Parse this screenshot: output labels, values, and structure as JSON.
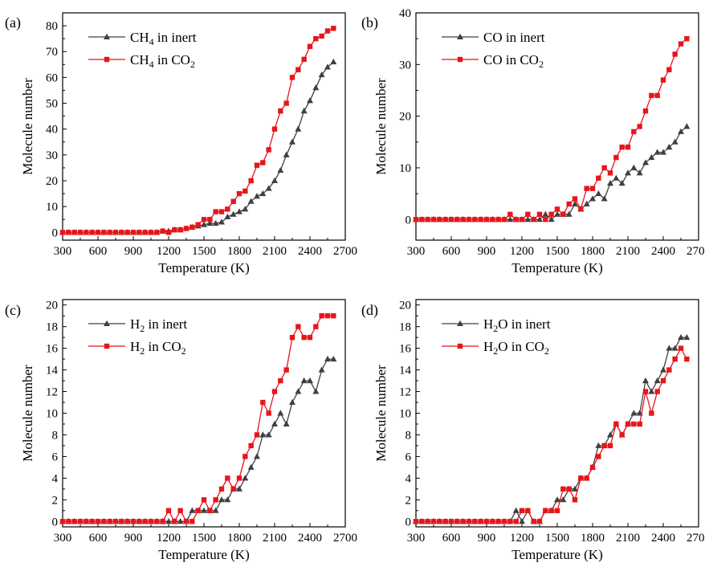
{
  "chart_data": [
    {
      "type": "line",
      "panel_label": "(a)",
      "xlabel": "Temperature (K)",
      "ylabel": "Molecule number",
      "xlim": [
        300,
        2700
      ],
      "ylim": [
        -3,
        85
      ],
      "xticks": [
        300,
        600,
        900,
        1200,
        1500,
        1800,
        2100,
        2400,
        2700
      ],
      "yticks": [
        0,
        10,
        20,
        30,
        40,
        50,
        60,
        70,
        80
      ],
      "legend_position": "top-left",
      "x": [
        300,
        350,
        400,
        450,
        500,
        550,
        600,
        650,
        700,
        750,
        800,
        850,
        900,
        950,
        1000,
        1050,
        1100,
        1150,
        1200,
        1250,
        1300,
        1350,
        1400,
        1450,
        1500,
        1550,
        1600,
        1650,
        1700,
        1750,
        1800,
        1850,
        1900,
        1950,
        2000,
        2050,
        2100,
        2150,
        2200,
        2250,
        2300,
        2350,
        2400,
        2450,
        2500,
        2550,
        2600
      ],
      "series": [
        {
          "name_parts": [
            "CH",
            "4",
            " in inert"
          ],
          "color": "#404040",
          "marker": "triangle",
          "values": [
            0,
            0,
            0,
            0,
            0,
            0,
            0,
            0,
            0,
            0,
            0,
            0,
            0,
            0,
            0,
            0,
            0,
            0.5,
            0.5,
            1,
            1,
            1.5,
            2,
            2.5,
            3,
            3.5,
            3.5,
            4,
            6,
            7,
            8,
            9,
            12,
            14,
            15,
            17,
            20,
            24,
            30,
            35,
            40,
            47,
            51,
            56,
            61,
            64,
            66
          ]
        },
        {
          "name_parts": [
            "CH",
            "4",
            " in CO",
            "2",
            ""
          ],
          "color": "#e8151b",
          "marker": "square",
          "values": [
            0,
            0,
            0,
            0,
            0,
            0,
            0,
            0,
            0,
            0,
            0,
            0,
            0,
            0,
            0,
            0,
            0,
            0.5,
            0,
            1,
            1,
            1.5,
            2,
            3,
            5,
            5,
            8,
            8,
            9,
            12,
            15,
            16,
            20,
            26,
            27,
            32,
            40,
            47,
            50,
            60,
            63,
            67,
            72,
            75,
            76,
            78,
            79
          ]
        }
      ]
    },
    {
      "type": "line",
      "panel_label": "(b)",
      "xlabel": "Temperature (K)",
      "ylabel": "Molecule number",
      "xlim": [
        300,
        2700
      ],
      "ylim": [
        -4,
        40
      ],
      "xticks": [
        300,
        600,
        900,
        1200,
        1500,
        1800,
        2100,
        2400,
        2700
      ],
      "yticks": [
        0,
        10,
        20,
        30,
        40
      ],
      "legend_position": "top-left",
      "x": [
        300,
        350,
        400,
        450,
        500,
        550,
        600,
        650,
        700,
        750,
        800,
        850,
        900,
        950,
        1000,
        1050,
        1100,
        1150,
        1200,
        1250,
        1300,
        1350,
        1400,
        1450,
        1500,
        1550,
        1600,
        1650,
        1700,
        1750,
        1800,
        1850,
        1900,
        1950,
        2000,
        2050,
        2100,
        2150,
        2200,
        2250,
        2300,
        2350,
        2400,
        2450,
        2500,
        2550,
        2600
      ],
      "series": [
        {
          "name_parts": [
            "CO in inert"
          ],
          "color": "#404040",
          "marker": "triangle",
          "values": [
            0,
            0,
            0,
            0,
            0,
            0,
            0,
            0,
            0,
            0,
            0,
            0,
            0,
            0,
            0,
            0,
            0,
            0,
            0,
            0,
            0,
            0,
            1,
            0,
            1,
            1,
            1,
            3,
            2,
            3,
            4,
            5,
            4,
            7,
            8,
            7,
            9,
            10,
            9,
            11,
            12,
            13,
            13,
            14,
            15,
            17,
            18
          ]
        },
        {
          "name_parts": [
            "CO in CO",
            "2",
            ""
          ],
          "color": "#e8151b",
          "marker": "square",
          "values": [
            0,
            0,
            0,
            0,
            0,
            0,
            0,
            0,
            0,
            0,
            0,
            0,
            0,
            0,
            0,
            0,
            1,
            0,
            0,
            1,
            0,
            1,
            0,
            1,
            2,
            1,
            3,
            4,
            2,
            6,
            6,
            8,
            10,
            9,
            12,
            14,
            14,
            17,
            18,
            21,
            24,
            24,
            27,
            29,
            32,
            34,
            35
          ]
        }
      ]
    },
    {
      "type": "line",
      "panel_label": "(c)",
      "xlabel": "Temperature (K)",
      "ylabel": "Molecule number",
      "xlim": [
        300,
        2700
      ],
      "ylim": [
        -0.5,
        20.5
      ],
      "xticks": [
        300,
        600,
        900,
        1200,
        1500,
        1800,
        2100,
        2400,
        2700
      ],
      "yticks": [
        0,
        2,
        4,
        6,
        8,
        10,
        12,
        14,
        16,
        18,
        20
      ],
      "legend_position": "top-left",
      "x": [
        300,
        350,
        400,
        450,
        500,
        550,
        600,
        650,
        700,
        750,
        800,
        850,
        900,
        950,
        1000,
        1050,
        1100,
        1150,
        1200,
        1250,
        1300,
        1350,
        1400,
        1450,
        1500,
        1550,
        1600,
        1650,
        1700,
        1750,
        1800,
        1850,
        1900,
        1950,
        2000,
        2050,
        2100,
        2150,
        2200,
        2250,
        2300,
        2350,
        2400,
        2450,
        2500,
        2550,
        2600
      ],
      "series": [
        {
          "name_parts": [
            "H",
            "2",
            " in inert"
          ],
          "color": "#404040",
          "marker": "triangle",
          "values": [
            0,
            0,
            0,
            0,
            0,
            0,
            0,
            0,
            0,
            0,
            0,
            0,
            0,
            0,
            0,
            0,
            0,
            0,
            0,
            0,
            0,
            0,
            1,
            1,
            1,
            1,
            1,
            2,
            2,
            3,
            3,
            4,
            5,
            6,
            8,
            8,
            9,
            10,
            9,
            11,
            12,
            13,
            13,
            12,
            14,
            15,
            15
          ]
        },
        {
          "name_parts": [
            "H",
            "2",
            " in CO",
            "2",
            ""
          ],
          "color": "#e8151b",
          "marker": "square",
          "values": [
            0,
            0,
            0,
            0,
            0,
            0,
            0,
            0,
            0,
            0,
            0,
            0,
            0,
            0,
            0,
            0,
            0,
            0,
            1,
            0,
            1,
            0,
            0,
            1,
            2,
            1,
            2,
            3,
            4,
            3,
            4,
            6,
            7,
            8,
            11,
            10,
            12,
            13,
            14,
            17,
            18,
            17,
            17,
            18,
            19,
            19,
            19
          ]
        }
      ]
    },
    {
      "type": "line",
      "panel_label": "(d)",
      "xlabel": "Temperature (K)",
      "ylabel": "Molecule number",
      "xlim": [
        300,
        2700
      ],
      "ylim": [
        -0.5,
        20.5
      ],
      "xticks": [
        300,
        600,
        900,
        1200,
        1500,
        1800,
        2100,
        2400,
        2700
      ],
      "yticks": [
        0,
        2,
        4,
        6,
        8,
        10,
        12,
        14,
        16,
        18,
        20
      ],
      "legend_position": "top-left",
      "x": [
        300,
        350,
        400,
        450,
        500,
        550,
        600,
        650,
        700,
        750,
        800,
        850,
        900,
        950,
        1000,
        1050,
        1100,
        1150,
        1200,
        1250,
        1300,
        1350,
        1400,
        1450,
        1500,
        1550,
        1600,
        1650,
        1700,
        1750,
        1800,
        1850,
        1900,
        1950,
        2000,
        2050,
        2100,
        2150,
        2200,
        2250,
        2300,
        2350,
        2400,
        2450,
        2500,
        2550,
        2600
      ],
      "series": [
        {
          "name_parts": [
            "H",
            "2",
            "O in inert"
          ],
          "color": "#404040",
          "marker": "triangle",
          "values": [
            0,
            0,
            0,
            0,
            0,
            0,
            0,
            0,
            0,
            0,
            0,
            0,
            0,
            0,
            0,
            0,
            0,
            1,
            0,
            1,
            0,
            0,
            1,
            1,
            2,
            2,
            3,
            3,
            4,
            4,
            5,
            7,
            7,
            8,
            9,
            8,
            9,
            10,
            10,
            13,
            12,
            13,
            14,
            16,
            16,
            17,
            17
          ]
        },
        {
          "name_parts": [
            "H",
            "2",
            "O in CO",
            "2",
            ""
          ],
          "color": "#e8151b",
          "marker": "square",
          "values": [
            0,
            0,
            0,
            0,
            0,
            0,
            0,
            0,
            0,
            0,
            0,
            0,
            0,
            0,
            0,
            0,
            0,
            0,
            1,
            1,
            0,
            0,
            1,
            1,
            1,
            3,
            3,
            2,
            4,
            4,
            5,
            6,
            7,
            7,
            9,
            8,
            9,
            9,
            9,
            12,
            10,
            12,
            13,
            14,
            15,
            16,
            15
          ]
        }
      ]
    }
  ]
}
